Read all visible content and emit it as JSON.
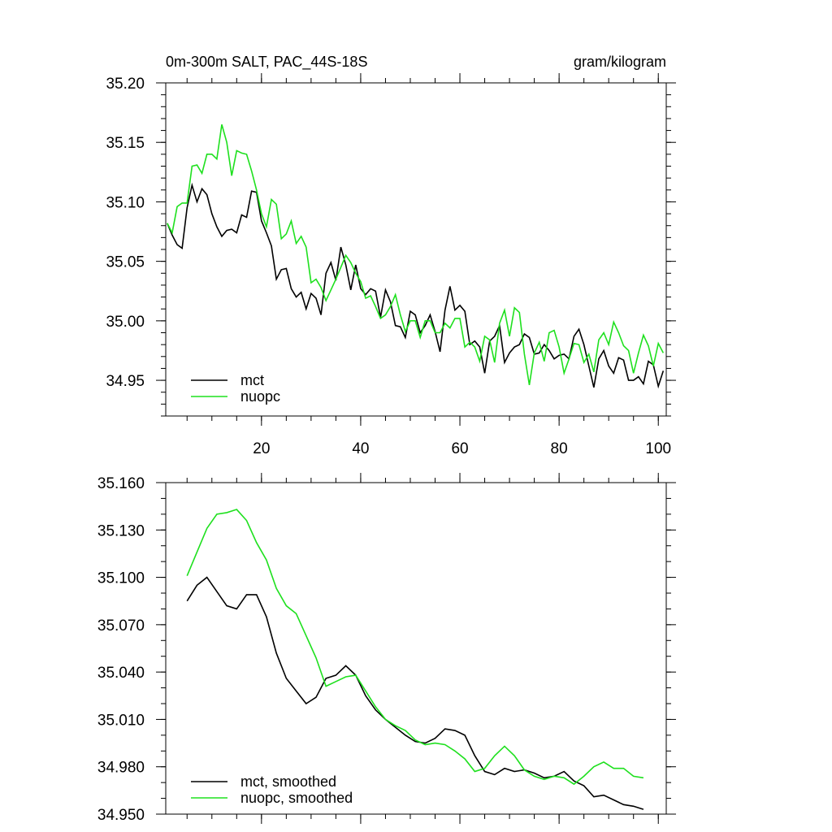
{
  "chart_data": [
    {
      "type": "line",
      "title": "0m-300m SALT, PAC_44S-18S",
      "units": "gram/kilogram",
      "x": [
        1,
        2,
        3,
        4,
        5,
        6,
        7,
        8,
        9,
        10,
        11,
        12,
        13,
        14,
        15,
        16,
        17,
        18,
        19,
        20,
        21,
        22,
        23,
        24,
        25,
        26,
        27,
        28,
        29,
        30,
        31,
        32,
        33,
        34,
        35,
        36,
        37,
        38,
        39,
        40,
        41,
        42,
        43,
        44,
        45,
        46,
        47,
        48,
        49,
        50,
        51,
        52,
        53,
        54,
        55,
        56,
        57,
        58,
        59,
        60,
        61,
        62,
        63,
        64,
        65,
        66,
        67,
        68,
        69,
        70,
        71,
        72,
        73,
        74,
        75,
        76,
        77,
        78,
        79,
        80,
        81,
        82,
        83,
        84,
        85,
        86,
        87,
        88,
        89,
        90,
        91,
        92,
        93,
        94,
        95,
        96,
        97,
        98,
        99,
        100,
        101
      ],
      "series": [
        {
          "name": "mct",
          "color": "#000000",
          "values": [
            35.082,
            35.072,
            35.064,
            35.061,
            35.095,
            35.114,
            35.1,
            35.111,
            35.106,
            35.09,
            35.079,
            35.071,
            35.076,
            35.077,
            35.074,
            35.089,
            35.087,
            35.109,
            35.108,
            35.084,
            35.074,
            35.063,
            35.035,
            35.043,
            35.044,
            35.027,
            35.02,
            35.024,
            35.01,
            35.023,
            35.019,
            35.005,
            35.04,
            35.049,
            35.034,
            35.062,
            35.047,
            35.026,
            35.047,
            35.027,
            35.022,
            35.027,
            35.025,
            35.003,
            35.026,
            35.016,
            34.996,
            34.995,
            34.986,
            35.008,
            35.005,
            34.99,
            34.996,
            35.005,
            34.991,
            34.974,
            35.009,
            35.029,
            35.009,
            35.013,
            35.008,
            34.98,
            34.983,
            34.978,
            34.956,
            34.983,
            34.987,
            34.996,
            34.965,
            34.973,
            34.978,
            34.98,
            34.989,
            34.986,
            34.972,
            34.973,
            34.98,
            34.975,
            34.968,
            34.971,
            34.972,
            34.968,
            34.987,
            34.993,
            34.98,
            34.962,
            34.944,
            34.968,
            34.975,
            34.962,
            34.956,
            34.969,
            34.967,
            34.95,
            34.95,
            34.953,
            34.947,
            34.966,
            34.963,
            34.945,
            34.958
          ]
        },
        {
          "name": "nuopc",
          "color": "#1ee01e",
          "values": [
            35.082,
            35.074,
            35.096,
            35.099,
            35.099,
            35.13,
            35.131,
            35.124,
            35.14,
            35.14,
            35.136,
            35.165,
            35.15,
            35.122,
            35.143,
            35.141,
            35.14,
            35.126,
            35.11,
            35.09,
            35.079,
            35.102,
            35.098,
            35.069,
            35.073,
            35.084,
            35.065,
            35.071,
            35.062,
            35.032,
            35.035,
            35.028,
            35.017,
            35.026,
            35.035,
            35.045,
            35.055,
            35.049,
            35.04,
            35.033,
            35.019,
            35.021,
            35.012,
            35.002,
            35.005,
            35.012,
            35.022,
            35.005,
            34.991,
            35.0,
            35.0,
            34.986,
            35.0,
            35.0,
            34.99,
            34.99,
            34.998,
            34.994,
            35.002,
            35.002,
            34.978,
            34.982,
            34.978,
            34.966,
            34.987,
            34.984,
            34.965,
            34.998,
            35.009,
            34.987,
            35.011,
            35.007,
            34.972,
            34.946,
            34.973,
            34.982,
            34.966,
            34.99,
            34.992,
            34.978,
            34.956,
            34.968,
            34.981,
            34.98,
            34.965,
            34.972,
            34.957,
            34.984,
            34.99,
            34.98,
            34.999,
            34.99,
            34.979,
            34.975,
            34.956,
            34.973,
            34.988,
            34.979,
            34.962,
            34.981,
            34.973
          ]
        }
      ],
      "xlim": [
        0.7,
        101.6
      ],
      "xticks": [
        20,
        40,
        60,
        80,
        100
      ],
      "ylim": [
        34.92,
        35.2
      ],
      "yticks": [
        {
          "value": 35.2,
          "label": "35.20"
        },
        35.15,
        {
          "value": 35.1,
          "label": "35.10"
        },
        35.05,
        {
          "value": 35.0,
          "label": "35.00"
        },
        34.95
      ],
      "legend": "lower left"
    },
    {
      "type": "line",
      "x": [
        5,
        7,
        9,
        11,
        13,
        15,
        17,
        19,
        21,
        23,
        25,
        27,
        29,
        31,
        33,
        35,
        37,
        39,
        41,
        43,
        45,
        47,
        49,
        51,
        53,
        55,
        57,
        59,
        61,
        63,
        65,
        67,
        69,
        71,
        73,
        75,
        77,
        79,
        81,
        83,
        85,
        87,
        89,
        91,
        93,
        95,
        97
      ],
      "series": [
        {
          "name": "mct, smoothed",
          "color": "#000000",
          "values": [
            35.085,
            35.095,
            35.1,
            35.091,
            35.082,
            35.08,
            35.089,
            35.089,
            35.075,
            35.052,
            35.036,
            35.028,
            35.02,
            35.024,
            35.036,
            35.038,
            35.044,
            35.038,
            35.025,
            35.016,
            35.01,
            35.005,
            35.0,
            34.996,
            34.995,
            34.998,
            35.004,
            35.003,
            35.0,
            34.987,
            34.977,
            34.975,
            34.979,
            34.977,
            34.978,
            34.976,
            34.973,
            34.974,
            34.977,
            34.971,
            34.968,
            34.961,
            34.962,
            34.959,
            34.956,
            34.955,
            34.953
          ]
        },
        {
          "name": "nuopc, smoothed",
          "color": "#1ee01e",
          "values": [
            35.101,
            35.116,
            35.131,
            35.14,
            35.141,
            35.143,
            35.136,
            35.122,
            35.111,
            35.093,
            35.082,
            35.077,
            35.063,
            35.049,
            35.031,
            35.034,
            35.037,
            35.038,
            35.028,
            35.018,
            35.01,
            35.006,
            35.003,
            34.997,
            34.994,
            34.995,
            34.994,
            34.99,
            34.985,
            34.977,
            34.979,
            34.987,
            34.993,
            34.987,
            34.978,
            34.974,
            34.972,
            34.974,
            34.973,
            34.969,
            34.974,
            34.98,
            34.983,
            34.979,
            34.979,
            34.974,
            34.973
          ]
        }
      ],
      "xlim": [
        0.7,
        101.6
      ],
      "xticks": [
        20,
        40,
        60,
        80,
        100
      ],
      "ylim": [
        34.95,
        35.16
      ],
      "yticks": [
        {
          "value": 35.16,
          "label": "35.160"
        },
        {
          "value": 35.13,
          "label": "35.130"
        },
        {
          "value": 35.1,
          "label": "35.100"
        },
        {
          "value": 35.07,
          "label": "35.070"
        },
        {
          "value": 35.04,
          "label": "35.040"
        },
        {
          "value": 35.01,
          "label": "35.010"
        },
        {
          "value": 34.98,
          "label": "34.980"
        },
        {
          "value": 34.95,
          "label": "34.950"
        }
      ],
      "legend": "lower left"
    }
  ]
}
